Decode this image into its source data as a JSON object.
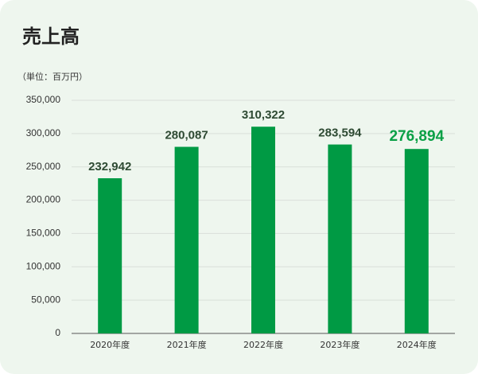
{
  "chart_data": {
    "type": "bar",
    "title": "売上高",
    "subtitle": "（単位：百万円）",
    "categories": [
      "2020年度",
      "2021年度",
      "2022年度",
      "2023年度",
      "2024年度"
    ],
    "values": [
      232942,
      280087,
      310322,
      283594,
      276894
    ],
    "value_labels": [
      "232,942",
      "280,087",
      "310,322",
      "283,594",
      "276,894"
    ],
    "color": "#009a44",
    "ylim": [
      0,
      350000
    ],
    "yticks": [
      0,
      {
        "value": 50000,
        "label": "50,000"
      },
      {
        "value": 100000,
        "label": "100,000"
      },
      {
        "value": 150000,
        "label": "150,000"
      },
      {
        "value": 200000,
        "label": "200,000"
      },
      {
        "value": 250000,
        "label": "250,000"
      },
      {
        "value": 300000,
        "label": "300,000"
      },
      {
        "value": 350000,
        "label": "350,000"
      }
    ],
    "grid": true
  }
}
